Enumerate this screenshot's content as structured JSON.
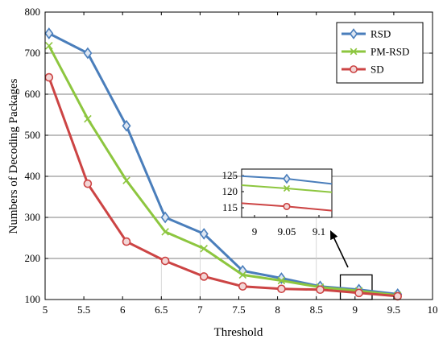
{
  "chart_data": {
    "type": "line",
    "xlabel": "Threshold",
    "ylabel": "Numbers of Decoding Packages",
    "xlim": [
      5,
      10
    ],
    "ylim": [
      100,
      800
    ],
    "xticks": [
      "5",
      "5.5",
      "6",
      "6.5",
      "7",
      "7.5",
      "8",
      "8.5",
      "9",
      "9.5",
      "10"
    ],
    "yticks": [
      "100",
      "200",
      "300",
      "400",
      "500",
      "600",
      "700",
      "800"
    ],
    "grid": "horizontal",
    "legend_position": "top-right",
    "x": [
      5.05,
      5.55,
      6.05,
      6.55,
      7.05,
      7.55,
      8.05,
      8.55,
      9.05,
      9.55
    ],
    "series": [
      {
        "name": "RSD",
        "color": "#4a7ebb",
        "marker": "diamond",
        "values": [
          748,
          700,
          523,
          300,
          260,
          170,
          152,
          132,
          124,
          113
        ]
      },
      {
        "name": "PM-RSD",
        "color": "#8dc63f",
        "marker": "x",
        "values": [
          718,
          540,
          390,
          265,
          224,
          160,
          146,
          130,
          121,
          110
        ]
      },
      {
        "name": "SD",
        "color": "#cc4444",
        "marker": "circle",
        "values": [
          641,
          382,
          241,
          194,
          156,
          132,
          126,
          124,
          116,
          108
        ]
      }
    ],
    "inset": {
      "xlim": [
        8.98,
        9.12
      ],
      "ylim": [
        112,
        127
      ],
      "xticks": [
        "9",
        "9.05",
        "9.1"
      ],
      "yticks": [
        "125",
        "120",
        "115"
      ],
      "series_values": [
        {
          "name": "RSD",
          "values": [
            [
              8.98,
              124.8
            ],
            [
              9.05,
              124
            ],
            [
              9.12,
              122.4
            ]
          ]
        },
        {
          "name": "PM-RSD",
          "values": [
            [
              8.98,
              122
            ],
            [
              9.05,
              121
            ],
            [
              9.12,
              119.8
            ]
          ]
        },
        {
          "name": "SD",
          "values": [
            [
              8.98,
              116.4
            ],
            [
              9.05,
              115.4
            ],
            [
              9.12,
              114.1
            ]
          ]
        }
      ]
    }
  }
}
